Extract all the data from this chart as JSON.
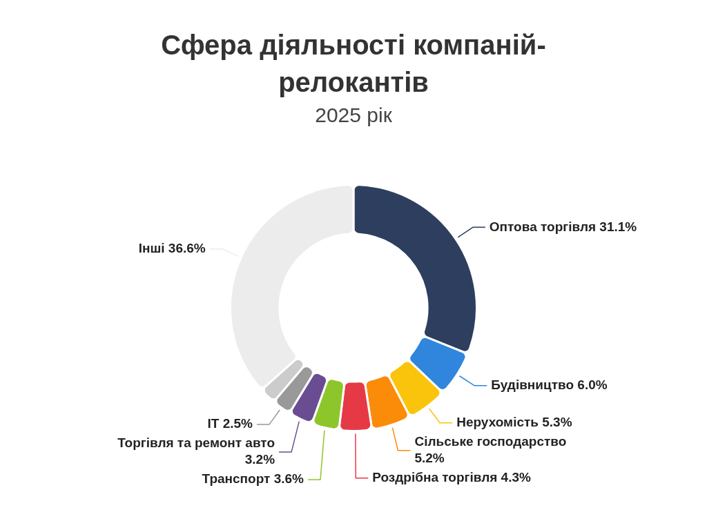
{
  "chart_data": {
    "type": "donut",
    "title": "Сфера діяльності компаній-релокантів",
    "subtitle": "2025 рік",
    "categories": [
      "Оптова торгівля",
      "Будівництво",
      "Нерухомість",
      "Сільське господарство",
      "Роздрібна торгівля",
      "Транспорт",
      "Торгівля та ремонт авто",
      "IT",
      null,
      "Інші"
    ],
    "values": [
      31.1,
      6.0,
      5.3,
      5.2,
      4.3,
      3.6,
      3.2,
      2.5,
      2.2,
      36.6
    ],
    "value_labels": [
      "31.1%",
      "6.0%",
      "5.3%",
      "5.2%",
      "4.3%",
      "3.6%",
      "3.2%",
      "2.5%",
      null,
      "36.6%"
    ],
    "colors": [
      "#2d3e5f",
      "#2f86dc",
      "#fbc40c",
      "#fb8c0a",
      "#e63946",
      "#8cc62a",
      "#6a4c93",
      "#999999",
      "#cccccc",
      "#ececec"
    ]
  }
}
